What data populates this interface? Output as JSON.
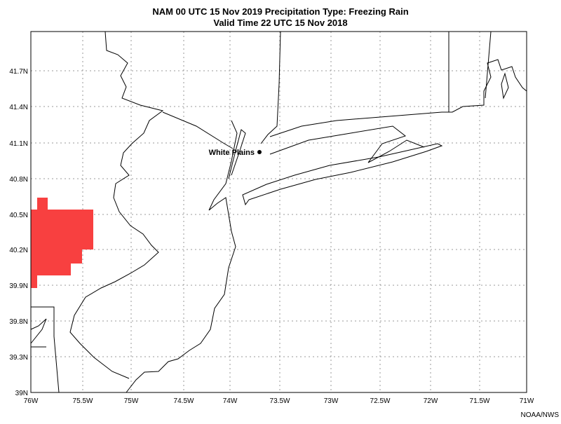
{
  "header": {
    "title": "NAM 00 UTC 15 Nov 2019 Precipitation Type: Freezing Rain",
    "subtitle": "Valid Time 22 UTC 15 Nov 2018"
  },
  "axes": {
    "y_labels": [
      "41.7N",
      "41.4N",
      "41.1N",
      "40.8N",
      "40.5N",
      "40.2N",
      "39.9N",
      "39.8N",
      "39.3N",
      "39N"
    ],
    "x_labels": [
      "76W",
      "75.5W",
      "75W",
      "74.5W",
      "74W",
      "73.5W",
      "73W",
      "72.5W",
      "72W",
      "71.5W",
      "71W"
    ]
  },
  "city": {
    "label": "White Plains"
  },
  "credit": "NOAA/NWS"
}
